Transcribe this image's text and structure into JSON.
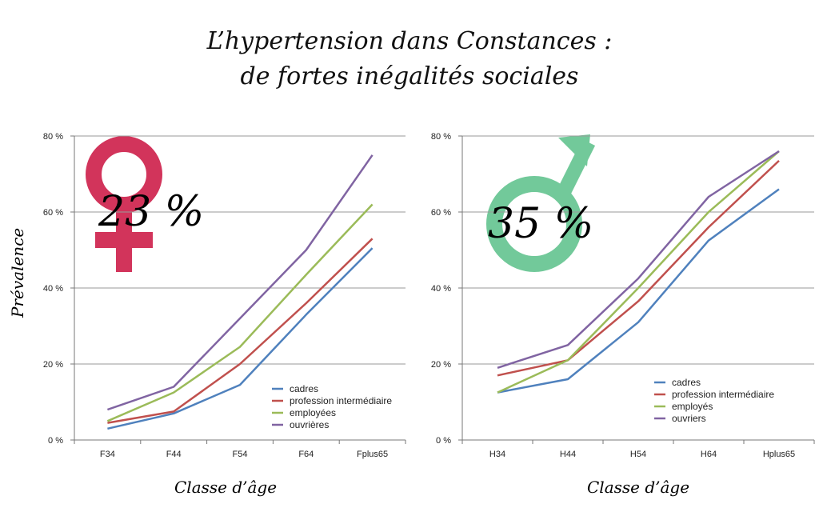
{
  "title": {
    "line1": "L’hypertension dans Constances :",
    "line2": "de fortes inégalités sociales"
  },
  "ylabel": "Prévalence",
  "colors": {
    "cadres": "#4f81bd",
    "intermediaire": "#c0504d",
    "employes": "#9bbb59",
    "ouvriers": "#8064a2",
    "female_symbol": "#d2345b",
    "male_symbol": "#72c99a",
    "grid": "#9a9a9a"
  },
  "chart_data": [
    {
      "type": "line",
      "badge": "23 %",
      "symbol": "female-symbol",
      "categories": [
        "F34",
        "F44",
        "F54",
        "F64",
        "Fplus65"
      ],
      "xlabel": "Classe d’âge",
      "ylabel": "Prévalence",
      "yticks": [
        "0 %",
        "20 %",
        "40 %",
        "60 %",
        "80 %"
      ],
      "ylim": [
        0,
        80
      ],
      "grid": true,
      "legend_position": "bottom-right",
      "series": [
        {
          "name": "cadres",
          "color_key": "cadres",
          "values": [
            3,
            7,
            14.5,
            33,
            50.5
          ]
        },
        {
          "name": "profession intermédiaire",
          "color_key": "intermediaire",
          "values": [
            4.5,
            7.5,
            20,
            36,
            53
          ]
        },
        {
          "name": "employées",
          "color_key": "employes",
          "values": [
            5,
            12.5,
            24.5,
            43.5,
            62
          ]
        },
        {
          "name": "ouvrières",
          "color_key": "ouvriers",
          "values": [
            8,
            14,
            32,
            50,
            75
          ]
        }
      ]
    },
    {
      "type": "line",
      "badge": "35 %",
      "symbol": "male-symbol",
      "categories": [
        "H34",
        "H44",
        "H54",
        "H64",
        "Hplus65"
      ],
      "xlabel": "Classe d’âge",
      "ylabel": "",
      "yticks": [
        "0 %",
        "20 %",
        "40 %",
        "60 %",
        "80 %"
      ],
      "ylim": [
        0,
        80
      ],
      "grid": true,
      "legend_position": "bottom-right",
      "series": [
        {
          "name": "cadres",
          "color_key": "cadres",
          "values": [
            12.5,
            16,
            31,
            52.5,
            66
          ]
        },
        {
          "name": "profession intermédiaire",
          "color_key": "intermediaire",
          "values": [
            17,
            21,
            36.5,
            56,
            73.5
          ]
        },
        {
          "name": "employés",
          "color_key": "employes",
          "values": [
            12.5,
            21,
            40,
            60,
            76
          ]
        },
        {
          "name": "ouvriers",
          "color_key": "ouvriers",
          "values": [
            19,
            25,
            42.5,
            64,
            76
          ]
        }
      ]
    }
  ]
}
